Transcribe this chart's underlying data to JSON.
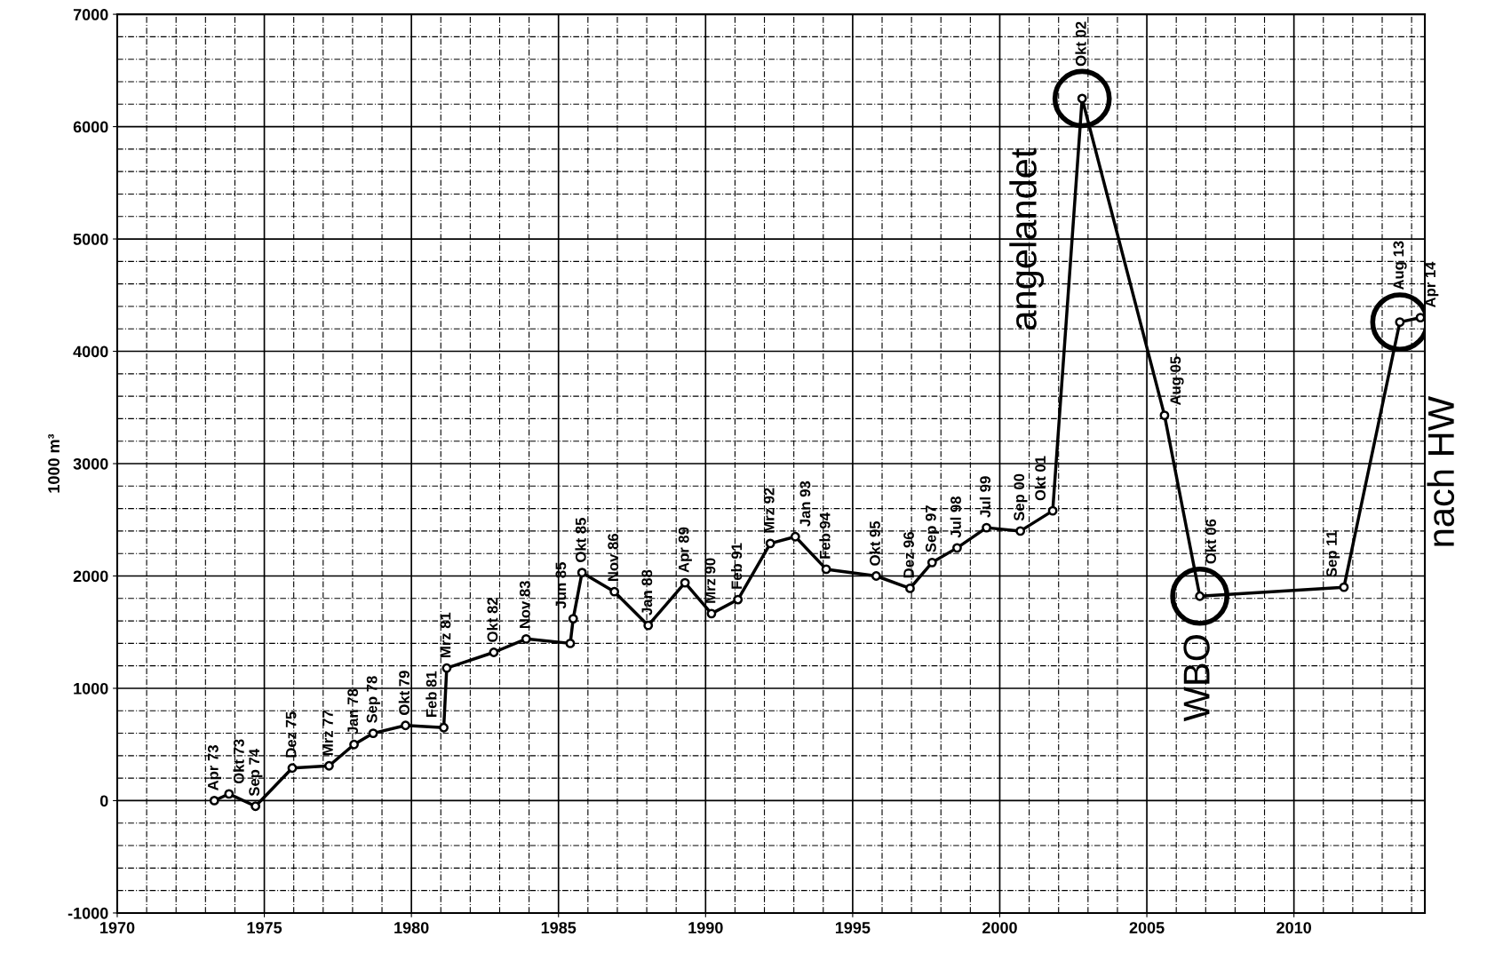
{
  "chart_data": {
    "type": "line",
    "ylabel": "1000 m³",
    "x": [
      1973.3,
      1973.8,
      1974.7,
      1975.95,
      1977.2,
      1978.05,
      1978.7,
      1979.8,
      1981.1,
      1981.2,
      1982.8,
      1983.9,
      1985.4,
      1985.5,
      1985.8,
      1986.9,
      1988.05,
      1989.3,
      1990.2,
      1991.1,
      1992.2,
      1993.05,
      1994.1,
      1995.8,
      1996.95,
      1997.7,
      1998.55,
      1999.55,
      2000.7,
      2001.8,
      2002.8,
      2005.6,
      2006.8,
      2011.7,
      2013.6,
      2014.3
    ],
    "series": [
      {
        "color": "#000000",
        "values": [
          0,
          60,
          -50,
          290,
          310,
          500,
          600,
          670,
          650,
          1180,
          1320,
          1440,
          1400,
          1620,
          2030,
          1860,
          1560,
          1940,
          1665,
          1790,
          2290,
          2350,
          2060,
          2000,
          1890,
          2120,
          2250,
          2430,
          2400,
          2580,
          6250,
          3430,
          1820,
          1900,
          4260,
          4300
        ],
        "value_labels": [
          "Apr 73",
          "Okt 73",
          "Sep 74",
          "Dez 75",
          "Mrz 77",
          "Jan 78",
          "Sep 78",
          "Okt 79",
          "Feb 81",
          "Mrz 81",
          "Okt 82",
          "Nov 83",
          null,
          "Jun 85",
          "Okt 85",
          "Nov 86",
          "Jan 88",
          "Apr 89",
          "Mrz 90",
          "Feb 91",
          "Mrz 92",
          "Jan 93",
          "Feb 94",
          "Okt 95",
          "Dez 96",
          "Sep 97",
          "Jul 98",
          "Jul 99",
          "Sep 00",
          "Okt 01",
          "Okt 02",
          "Aug 05",
          "Okt 06",
          "Sep 11",
          "Aug 13",
          "Apr 14"
        ]
      }
    ],
    "xlim": [
      1970,
      2014.45
    ],
    "xticks": [
      1970,
      1975,
      1980,
      1985,
      1990,
      1995,
      2000,
      2005,
      2010
    ],
    "ylim": [
      -1000,
      7000
    ],
    "yticks": [
      -1000,
      0,
      1000,
      2000,
      3000,
      4000,
      5000,
      6000,
      7000
    ],
    "grid": true,
    "marker": "circle",
    "line_style": "solid",
    "annotations": [
      {
        "text": "angelandet",
        "x": 2002.8,
        "y": 6250
      },
      {
        "text": "WBO",
        "x": 2006.8,
        "y": 1820
      },
      {
        "text": "nach HW",
        "x": 2013.6,
        "y": 4260
      }
    ]
  }
}
